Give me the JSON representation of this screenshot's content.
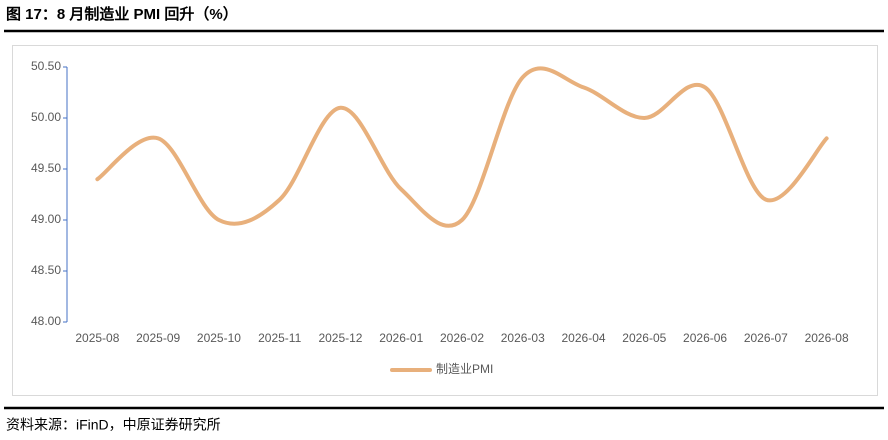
{
  "chart_data": {
    "type": "line",
    "title": "图 17：8 月制造业 PMI 回升（%）",
    "source": "资料来源：iFinD，中原证券研究所",
    "categories": [
      "2025-08",
      "2025-09",
      "2025-10",
      "2025-11",
      "2025-12",
      "2026-01",
      "2026-02",
      "2026-03",
      "2026-04",
      "2026-05",
      "2026-06",
      "2026-07",
      "2026-08"
    ],
    "series": [
      {
        "name": "制造业PMI",
        "color": "#e8b07c",
        "values": [
          49.4,
          49.8,
          49.0,
          49.2,
          50.1,
          49.3,
          49.0,
          50.4,
          50.3,
          50.0,
          50.3,
          49.2,
          49.8
        ]
      }
    ],
    "ylim": [
      48,
      50.5
    ],
    "yticks": [
      {
        "value": 48,
        "label": "48.00"
      },
      {
        "value": 48.5,
        "label": "48.50"
      },
      {
        "value": 49,
        "label": "49.00"
      },
      {
        "value": 49.5,
        "label": "49.50"
      },
      {
        "value": 50,
        "label": "50.00"
      },
      {
        "value": 50.5,
        "label": "50.50"
      }
    ],
    "grid": false,
    "smooth": true,
    "legend": "bottom"
  }
}
